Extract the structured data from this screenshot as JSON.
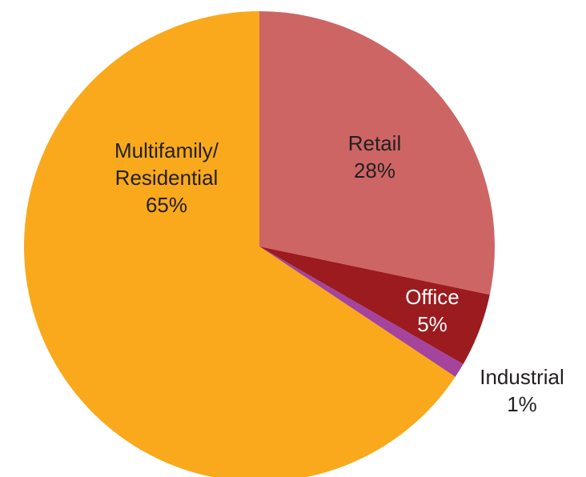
{
  "chart_data": {
    "type": "pie",
    "categories": [
      "Retail",
      "Office",
      "Industrial",
      "Multifamily/\nResidential"
    ],
    "values": [
      28,
      5,
      1,
      65
    ],
    "value_labels": [
      "28%",
      "5%",
      "1%",
      "65%"
    ],
    "colors": [
      "#cd6565",
      "#9b1b1f",
      "#a4449c",
      "#f9a91b"
    ]
  }
}
